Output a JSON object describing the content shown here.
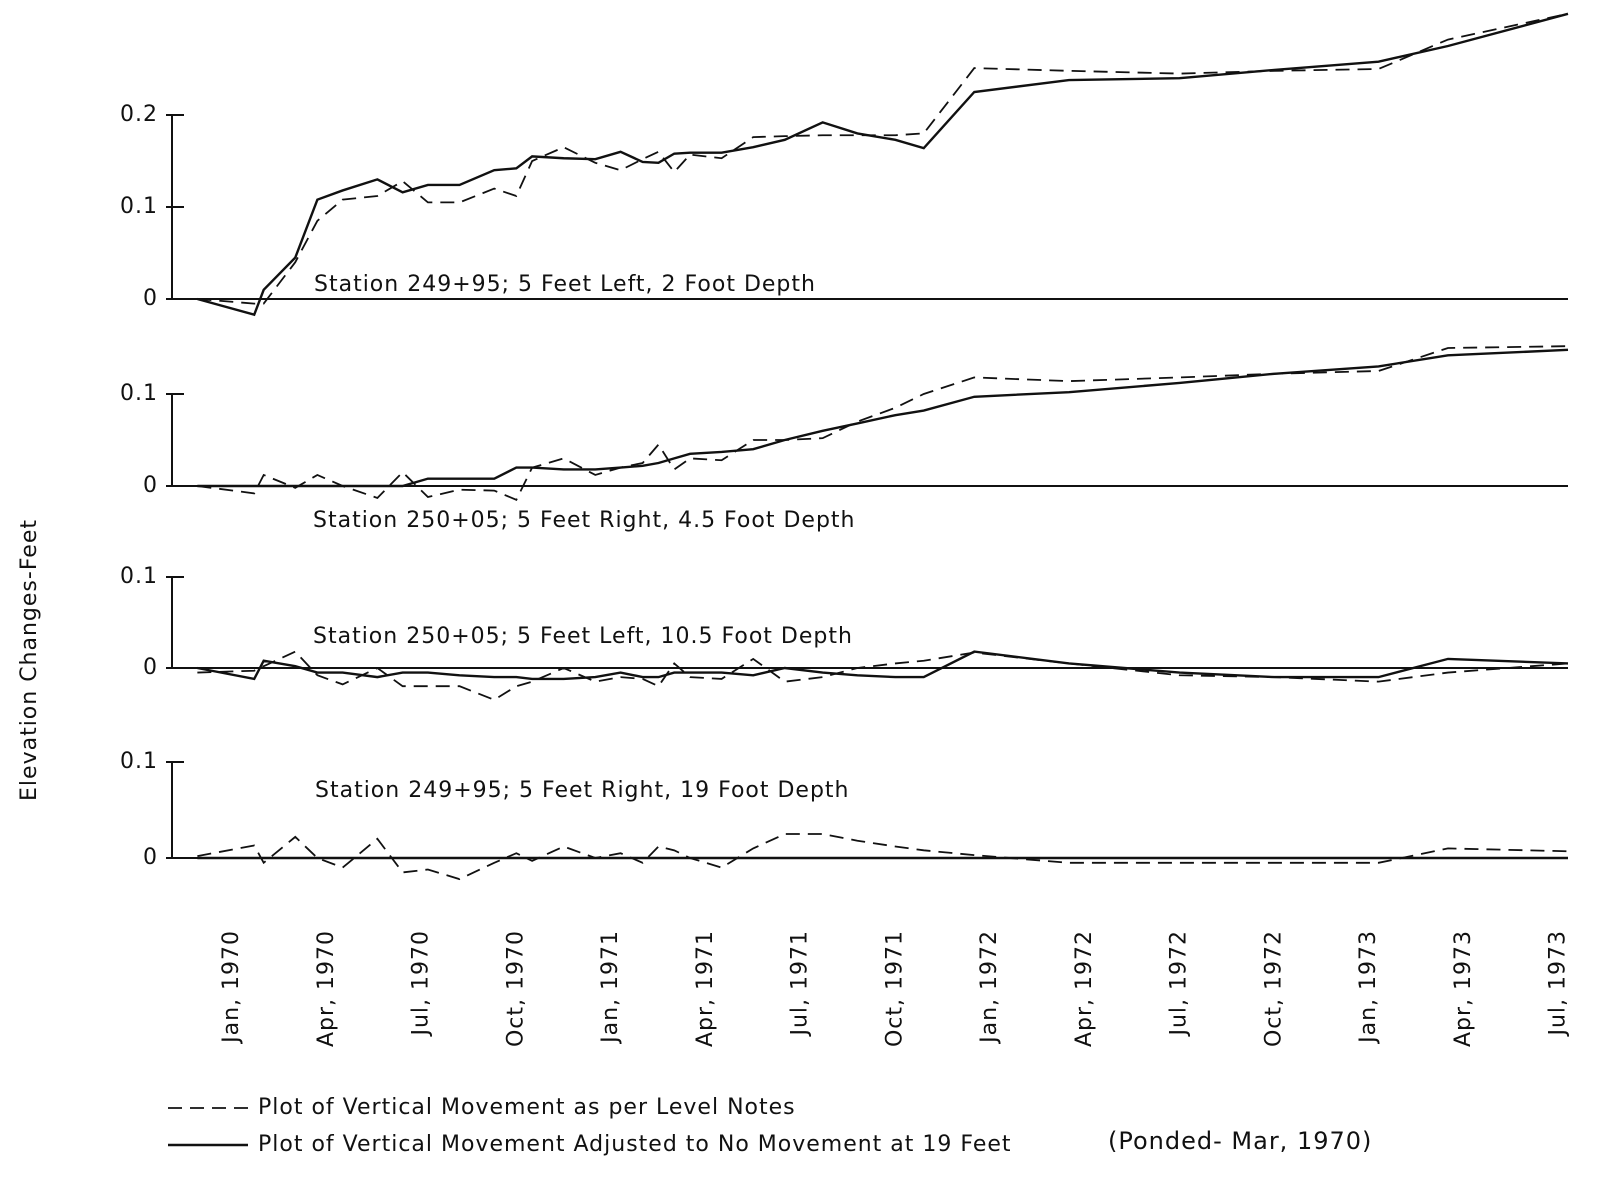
{
  "chart_data": {
    "type": "line",
    "ylabel": "Elevation Changes-Feet",
    "note": "(Ponded- Mar, 1970)",
    "xlim": [
      -2.03,
      42.3
    ],
    "xticks": [
      {
        "value": 0,
        "label": "Jan, 1970"
      },
      {
        "value": 3,
        "label": "Apr, 1970"
      },
      {
        "value": 6,
        "label": "Jul, 1970"
      },
      {
        "value": 9,
        "label": "Oct, 1970"
      },
      {
        "value": 12,
        "label": "Jan, 1971"
      },
      {
        "value": 15,
        "label": "Apr, 1971"
      },
      {
        "value": 18,
        "label": "Jul, 1971"
      },
      {
        "value": 21,
        "label": "Oct, 1971"
      },
      {
        "value": 24,
        "label": "Jan, 1972"
      },
      {
        "value": 27,
        "label": "Apr, 1972"
      },
      {
        "value": 30,
        "label": "Jul, 1972"
      },
      {
        "value": 33,
        "label": "Oct, 1972"
      },
      {
        "value": 36,
        "label": "Jan, 1973"
      },
      {
        "value": 39,
        "label": "Apr, 1973"
      },
      {
        "value": 42,
        "label": "Jul, 1973"
      }
    ],
    "x": [
      -1.1,
      0.7,
      1,
      2,
      2.7,
      3.5,
      4.6,
      5.4,
      6.2,
      7.2,
      8.3,
      9,
      9.5,
      10.5,
      11.5,
      12.3,
      13,
      13.5,
      14,
      14.5,
      15.5,
      16.5,
      17.5,
      18.7,
      19.8,
      21,
      21.9,
      23.5,
      26.5,
      30,
      33,
      36.3,
      38.5,
      42.3
    ],
    "series": [
      {
        "name": "Plot of Vertical Movement as per Level Notes",
        "color": "#111111",
        "style": "dashed"
      },
      {
        "name": "Plot of Vertical Movement Adjusted to No Movement at 19 Feet",
        "color": "#111111",
        "style": "solid"
      }
    ],
    "panels": [
      {
        "title": "Station 249+95; 5 Feet Left, 2 Foot Depth",
        "ylim": [
          -0.03,
          0.32
        ],
        "yticks": [
          0,
          0.1,
          0.2
        ],
        "values": [
          [
            0,
            -0.005,
            -0.005,
            0.04,
            0.085,
            0.108,
            0.112,
            0.128,
            0.105,
            0.105,
            0.12,
            0.112,
            0.15,
            0.165,
            0.148,
            0.14,
            0.152,
            0.16,
            0.138,
            0.157,
            0.153,
            0.176,
            0.177,
            0.178,
            0.178,
            0.178,
            0.18,
            0.251,
            0.248,
            0.245,
            0.248,
            0.25,
            0.282,
            0.31
          ],
          [
            0,
            -0.017,
            0.01,
            0.045,
            0.108,
            0.118,
            0.13,
            0.116,
            0.124,
            0.124,
            0.14,
            0.142,
            0.155,
            0.153,
            0.152,
            0.16,
            0.149,
            0.148,
            0.158,
            0.159,
            0.159,
            0.165,
            0.173,
            0.192,
            0.18,
            0.173,
            0.164,
            0.225,
            0.238,
            0.24,
            0.249,
            0.258,
            0.275,
            0.31
          ]
        ]
      },
      {
        "title": "Station 250+05; 5 Feet Right, 4.5 Foot Depth",
        "ylim": [
          -0.02,
          0.17
        ],
        "yticks": [
          0,
          0.1
        ],
        "values": [
          [
            0,
            -0.008,
            0.012,
            -0.002,
            0.012,
            0,
            -0.013,
            0.015,
            -0.012,
            -0.004,
            -0.005,
            -0.015,
            0.02,
            0.03,
            0.012,
            0.02,
            0.025,
            0.045,
            0.018,
            0.03,
            0.028,
            0.05,
            0.05,
            0.052,
            0.07,
            0.085,
            0.1,
            0.118,
            0.114,
            0.118,
            0.122,
            0.125,
            0.15,
            0.152
          ],
          [
            0,
            0,
            0,
            0,
            0,
            0,
            0,
            0,
            0.008,
            0.008,
            0.008,
            0.02,
            0.02,
            0.018,
            0.018,
            0.02,
            0.022,
            0.025,
            0.03,
            0.035,
            0.037,
            0.04,
            0.05,
            0.06,
            0.068,
            0.077,
            0.082,
            0.097,
            0.102,
            0.112,
            0.122,
            0.13,
            0.142,
            0.148
          ]
        ]
      },
      {
        "title": "Station 250+05; 5 Feet Left, 10.5 Foot Depth",
        "ylim": [
          -0.04,
          0.1
        ],
        "yticks": [
          0,
          0.1
        ],
        "values": [
          [
            -0.005,
            -0.003,
            0.002,
            0.018,
            -0.008,
            -0.018,
            0,
            -0.02,
            -0.02,
            -0.02,
            -0.035,
            -0.02,
            -0.015,
            0,
            -0.015,
            -0.01,
            -0.012,
            -0.02,
            0.005,
            -0.01,
            -0.012,
            0.01,
            -0.015,
            -0.01,
            0,
            0.005,
            0.008,
            0.017,
            0.005,
            -0.008,
            -0.01,
            -0.015,
            -0.005,
            0.005
          ],
          [
            0,
            -0.012,
            0.008,
            0.002,
            -0.005,
            -0.005,
            -0.01,
            -0.005,
            -0.005,
            -0.008,
            -0.01,
            -0.01,
            -0.012,
            -0.012,
            -0.01,
            -0.005,
            -0.01,
            -0.01,
            -0.005,
            -0.005,
            -0.005,
            -0.008,
            0,
            -0.005,
            -0.008,
            -0.01,
            -0.01,
            0.018,
            0.005,
            -0.005,
            -0.01,
            -0.01,
            0.01,
            0.005
          ]
        ]
      },
      {
        "title": "Station 249+95; 5 Feet Right, 19 Foot Depth",
        "ylim": [
          -0.03,
          0.1
        ],
        "yticks": [
          0,
          0.1
        ],
        "values": [
          [
            0.002,
            0.013,
            -0.005,
            0.022,
            0,
            -0.01,
            0.02,
            -0.015,
            -0.012,
            -0.022,
            -0.005,
            0.005,
            -0.003,
            0.012,
            0,
            0.005,
            -0.005,
            0.012,
            0.008,
            0,
            -0.01,
            0.01,
            0.025,
            0.025,
            0.018,
            0.012,
            0.008,
            0.003,
            -0.005,
            -0.005,
            -0.005,
            -0.005,
            0.01,
            0.007
          ],
          [
            0,
            0,
            0,
            0,
            0,
            0,
            0,
            0,
            0,
            0,
            0,
            0,
            0,
            0,
            0,
            0,
            0,
            0,
            0,
            0,
            0,
            0,
            0,
            0,
            0,
            0,
            0,
            0,
            0,
            0,
            0,
            0,
            0,
            0
          ]
        ]
      }
    ]
  }
}
